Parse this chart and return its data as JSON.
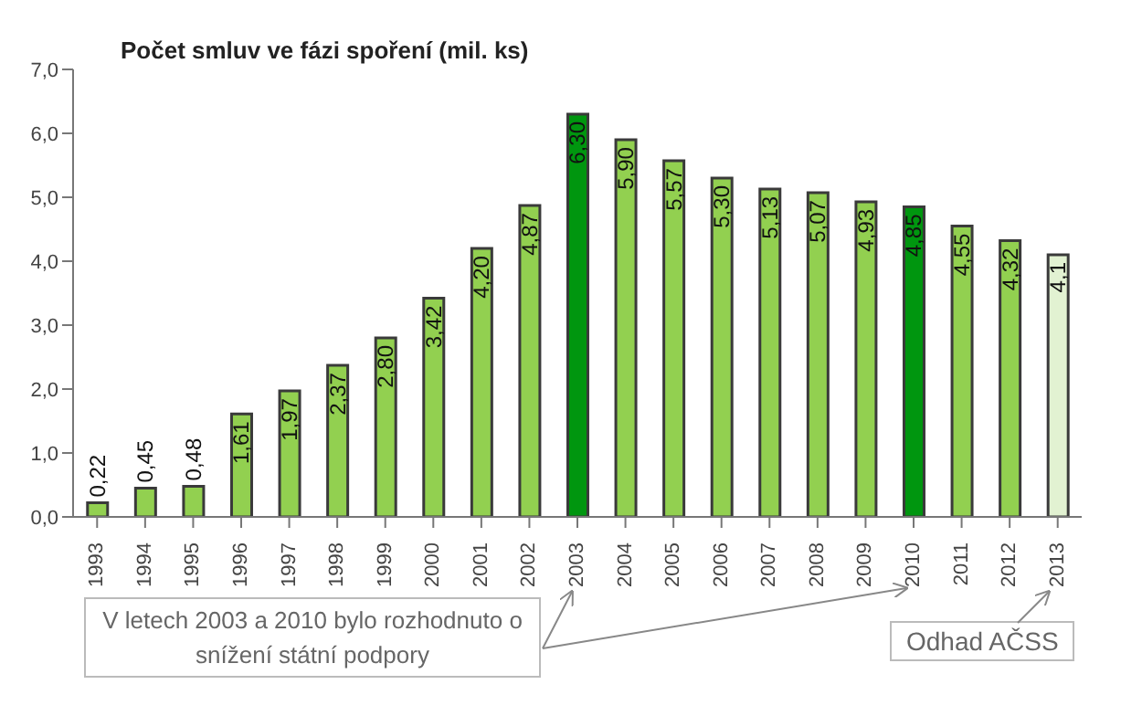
{
  "chart_data": {
    "type": "bar",
    "title": "Počet smluv ve fázi spoření (mil. ks)",
    "categories": [
      "1993",
      "1994",
      "1995",
      "1996",
      "1997",
      "1998",
      "1999",
      "2000",
      "2001",
      "2002",
      "2003",
      "2004",
      "2005",
      "2006",
      "2007",
      "2008",
      "2009",
      "2010",
      "2011",
      "2012",
      "2013"
    ],
    "values": [
      0.22,
      0.45,
      0.48,
      1.61,
      1.97,
      2.37,
      2.8,
      3.42,
      4.2,
      4.87,
      6.3,
      5.9,
      5.57,
      5.3,
      5.13,
      5.07,
      4.93,
      4.85,
      4.55,
      4.32,
      4.1
    ],
    "value_labels": [
      "0,22",
      "0,45",
      "0,48",
      "1,61",
      "1,97",
      "2,37",
      "2,80",
      "3,42",
      "4,20",
      "4,87",
      "6,30",
      "5,90",
      "5,57",
      "5,30",
      "5,13",
      "5,07",
      "4,93",
      "4,85",
      "4,55",
      "4,32",
      "4,1"
    ],
    "colors": [
      "#92d050",
      "#92d050",
      "#92d050",
      "#92d050",
      "#92d050",
      "#92d050",
      "#92d050",
      "#92d050",
      "#92d050",
      "#92d050",
      "#00960f",
      "#92d050",
      "#92d050",
      "#92d050",
      "#92d050",
      "#92d050",
      "#92d050",
      "#00960f",
      "#92d050",
      "#92d050",
      "#e2f2d2"
    ],
    "ylim": [
      0,
      7
    ],
    "yticks": [
      {
        "value": 0,
        "label": "0,0"
      },
      {
        "value": 1,
        "label": "1,0"
      },
      {
        "value": 2,
        "label": "2,0"
      },
      {
        "value": 3,
        "label": "3,0"
      },
      {
        "value": 4,
        "label": "4,0"
      },
      {
        "value": 5,
        "label": "5,0"
      },
      {
        "value": 6,
        "label": "6,0"
      },
      {
        "value": 7,
        "label": "7,0"
      }
    ],
    "grid": false,
    "legend": false,
    "annotations": [
      "V letech 2003 a 2010 bylo rozhodnuto o snížení státní podpory",
      "Odhad AČSS"
    ]
  }
}
